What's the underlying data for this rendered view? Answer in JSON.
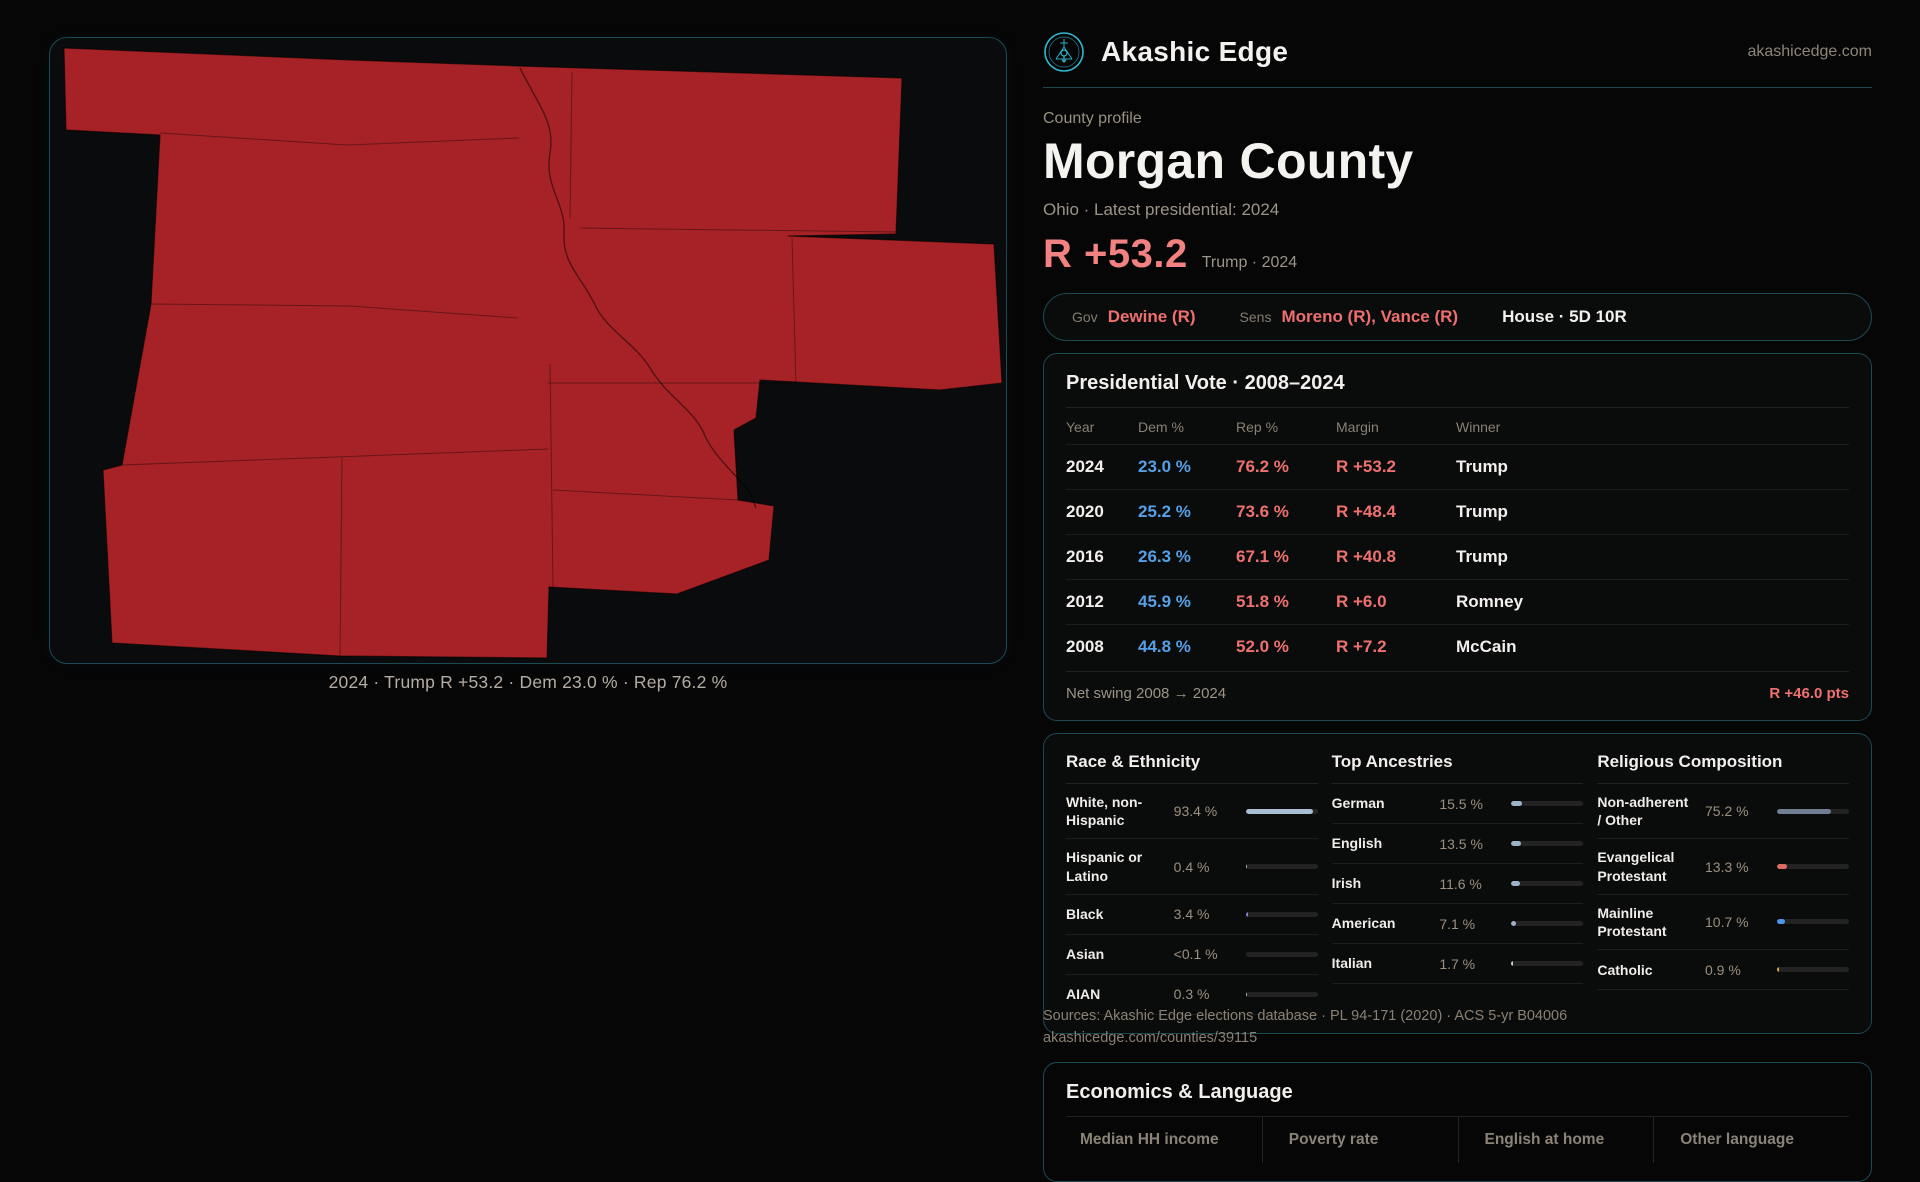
{
  "brand": {
    "name": "Akashic Edge",
    "domain": "akashicedge.com",
    "logo_color": "#2fb9ce"
  },
  "map": {
    "caption": "2024 · Trump R +53.2 · Dem 23.0 % · Rep 76.2 %",
    "fill_color": "#a72226"
  },
  "profile": {
    "eyebrow": "County profile",
    "title": "Morgan County",
    "subtitle": "Ohio · Latest presidential: 2024",
    "margin_value": "R +53.2",
    "margin_note": "Trump · 2024"
  },
  "officials": {
    "gov_label": "Gov",
    "gov_value": "Dewine (R)",
    "sens_label": "Sens",
    "sens_value": "Moreno (R), Vance (R)",
    "house_value": "House · 5D 10R"
  },
  "presidential": {
    "title": "Presidential Vote · 2008–2024",
    "columns": [
      "Year",
      "Dem %",
      "Rep %",
      "Margin",
      "Winner"
    ],
    "rows": [
      {
        "year": "2024",
        "dem": "23.0 %",
        "rep": "76.2 %",
        "margin": "R +53.2",
        "winner": "Trump"
      },
      {
        "year": "2020",
        "dem": "25.2 %",
        "rep": "73.6 %",
        "margin": "R +48.4",
        "winner": "Trump"
      },
      {
        "year": "2016",
        "dem": "26.3 %",
        "rep": "67.1 %",
        "margin": "R +40.8",
        "winner": "Trump"
      },
      {
        "year": "2012",
        "dem": "45.9 %",
        "rep": "51.8 %",
        "margin": "R +6.0",
        "winner": "Romney"
      },
      {
        "year": "2008",
        "dem": "44.8 %",
        "rep": "52.0 %",
        "margin": "R +7.2",
        "winner": "McCain"
      }
    ],
    "net_swing_label": "Net swing 2008 → 2024",
    "net_swing_value": "R +46.0 pts"
  },
  "demographics": {
    "race": {
      "title": "Race & Ethnicity",
      "rows": [
        {
          "label": "White, non-Hispanic",
          "value": "93.4 %",
          "pct": 93.4,
          "color": "#a9bdd3"
        },
        {
          "label": "Hispanic or Latino",
          "value": "0.4 %",
          "pct": 0.4,
          "color": "#a9bdd3"
        },
        {
          "label": "Black",
          "value": "3.4 %",
          "pct": 3.4,
          "color": "#8b7fd0"
        },
        {
          "label": "Asian",
          "value": "<0.1 %",
          "pct": 0,
          "color": "#a9bdd3"
        },
        {
          "label": "AIAN",
          "value": "0.3 %",
          "pct": 0.3,
          "color": "#a9bdd3"
        }
      ]
    },
    "ancestries": {
      "title": "Top Ancestries",
      "rows": [
        {
          "label": "German",
          "value": "15.5 %",
          "pct": 15.5,
          "color": "#9db3ca"
        },
        {
          "label": "English",
          "value": "13.5 %",
          "pct": 13.5,
          "color": "#9db3ca"
        },
        {
          "label": "Irish",
          "value": "11.6 %",
          "pct": 11.6,
          "color": "#9db3ca"
        },
        {
          "label": "American",
          "value": "7.1 %",
          "pct": 7.1,
          "color": "#9db3ca"
        },
        {
          "label": "Italian",
          "value": "1.7 %",
          "pct": 1.7,
          "color": "#c8d2dc"
        }
      ]
    },
    "religion": {
      "title": "Religious Composition",
      "rows": [
        {
          "label": "Non-adherent / Other",
          "value": "75.2 %",
          "pct": 75.2,
          "color": "#6f7e90"
        },
        {
          "label": "Evangelical Protestant",
          "value": "13.3 %",
          "pct": 13.3,
          "color": "#de6a66"
        },
        {
          "label": "Mainline Protestant",
          "value": "10.7 %",
          "pct": 10.7,
          "color": "#4f96e8"
        },
        {
          "label": "Catholic",
          "value": "0.9 %",
          "pct": 0.9,
          "color": "#d9a93f"
        }
      ]
    }
  },
  "economics": {
    "title": "Economics & Language",
    "columns": [
      "Median HH income",
      "Poverty rate",
      "English at home",
      "Other language"
    ]
  },
  "sources": {
    "line1": "Sources: Akashic Edge elections database · PL 94-171 (2020) · ACS 5-yr B04006",
    "line2": "akashicedge.com/counties/39115"
  }
}
